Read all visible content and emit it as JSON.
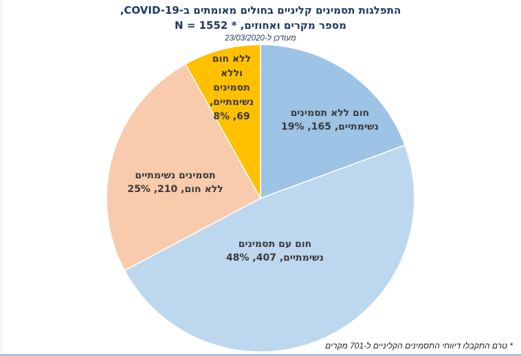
{
  "title": {
    "line1": "התפלגות תסמינים קליניים בחולים מאומתים ב-COVID-19,",
    "line2": "מספר מקרים ואחוזים, * N = 1552",
    "updated": "מעודכן ל-23/03/2020"
  },
  "labels": {
    "s0": {
      "l1": "חום ללא תסמינים",
      "l2": "נשימתיים, 165, 19%"
    },
    "s1": {
      "l1": "חום עם תסמינים",
      "l2": "נשימתיים, 407, 48%"
    },
    "s2": {
      "l1": "תסמינים נשימתיים",
      "l2": "ללא חום, 210, 25%"
    },
    "s3": {
      "l1": "ללא חום",
      "l2": "וללא",
      "l3": "תסמינים",
      "l4": "נשימתיים,",
      "l5": "69, 8%"
    }
  },
  "footnote": "* טרם התקבלו דיווחי התסמינים הקליניים ל-701 מקרים",
  "chart_data": {
    "type": "pie",
    "title": "התפלגות תסמינים קליניים בחולים מאומתים ב-COVID-19, מספר מקרים ואחוזים, * N = 1552",
    "subtitle": "מעודכן ל-23/03/2020",
    "categories": [
      "חום ללא תסמינים נשימתיים",
      "חום עם תסמינים נשימתיים",
      "תסמינים נשימתיים ללא חום",
      "ללא חום וללא תסמינים נשימתיים"
    ],
    "values": [
      165,
      407,
      210,
      69
    ],
    "percentages": [
      19,
      48,
      25,
      8
    ],
    "colors": [
      "#9dc3e6",
      "#bdd7ee",
      "#f8cbad",
      "#ffc000"
    ],
    "start_angle": "12 o'clock, clockwise",
    "legend": "none (data labels on slices)",
    "footnote": "* טרם התקבלו דיווחי התסמינים הקליניים ל-701 מקרים"
  }
}
